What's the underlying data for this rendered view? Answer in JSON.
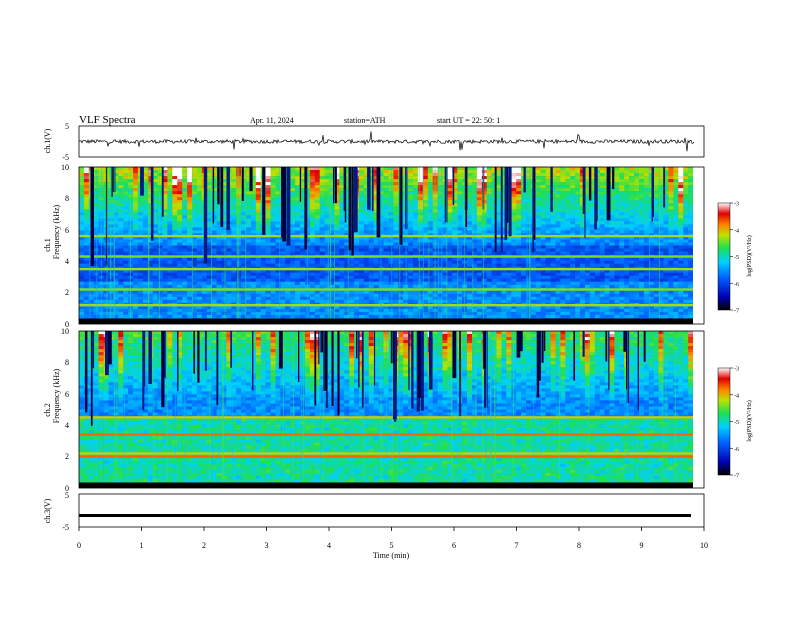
{
  "header": {
    "title": "VLF  Spectra",
    "date": "Apr. 11, 2024",
    "station": "station=ATH",
    "start_ut": "start  UT  =    22: 50: 1"
  },
  "axes": {
    "ch1_ylabel": "ch.1(V)",
    "ch2_spec_ylabel_top": "ch.1",
    "ch2_spec_ylabel_bottom": "Frequency  (kHz)",
    "ch3_spec_ylabel_top": "ch.2",
    "ch3_spec_ylabel_bottom": "Frequency  (kHz)",
    "ch3_ylabel": "ch.3(V)",
    "xlabel": "Time  (min)"
  },
  "colorbar": {
    "label": "log(PSD)(V²/Hz)",
    "ticks": [
      "-3",
      "-4",
      "-5",
      "-6",
      "-7"
    ]
  },
  "chart_data": [
    {
      "type": "line",
      "name": "ch1-waveform",
      "ylabel": "ch.1(V)",
      "ylim": [
        -5,
        5
      ],
      "yticks": [
        "5",
        "-5"
      ],
      "xlim": [
        0,
        10
      ],
      "approx_level": 0
    },
    {
      "type": "heatmap",
      "name": "ch1-spectrogram",
      "ylabel": "Frequency  (kHz)",
      "ylim": [
        0,
        10
      ],
      "yticks": [
        "0",
        "2",
        "4",
        "6",
        "8",
        "10"
      ],
      "xlim": [
        0,
        10
      ],
      "colorscale_range": [
        -7,
        -3
      ],
      "bands_khz": [
        1.2,
        2.2,
        3.5,
        4.3,
        5.6
      ]
    },
    {
      "type": "heatmap",
      "name": "ch2-spectrogram",
      "ylabel": "Frequency  (kHz)",
      "ylim": [
        0,
        10
      ],
      "yticks": [
        "0",
        "2",
        "4",
        "6",
        "8",
        "10"
      ],
      "xlim": [
        0,
        10
      ],
      "colorscale_range": [
        -7,
        -3
      ],
      "bands_khz": [
        2.0,
        2.2,
        3.4,
        4.5
      ]
    },
    {
      "type": "line",
      "name": "ch3-waveform",
      "ylabel": "ch.3(V)",
      "ylim": [
        -5,
        5
      ],
      "yticks": [
        "5",
        "-5"
      ],
      "xlim": [
        0,
        10
      ],
      "xticks": [
        "0",
        "1",
        "2",
        "3",
        "4",
        "5",
        "6",
        "7",
        "8",
        "9",
        "10"
      ],
      "xlabel": "Time  (min)",
      "approx_level": -1.5
    }
  ]
}
